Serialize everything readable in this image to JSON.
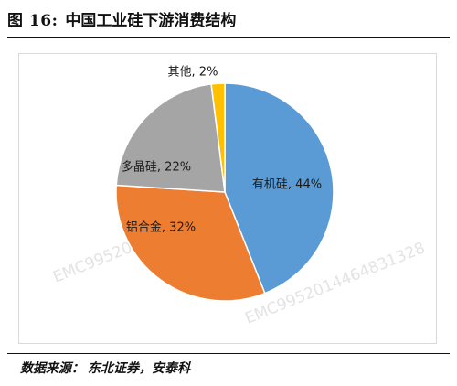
{
  "figure": {
    "label": "图 16:",
    "title": "中国工业硅下游消费结构"
  },
  "source": {
    "label": "数据来源：",
    "text": "东北证券，安泰科"
  },
  "watermark": {
    "text": "EMC9952014464831328"
  },
  "chart_data": {
    "type": "pie",
    "title": "",
    "slices": [
      {
        "label": "有机硅",
        "value": 44,
        "display": "有机硅, 44%",
        "color": "#5b9bd5"
      },
      {
        "label": "铝合金",
        "value": 32,
        "display": "铝合金, 32%",
        "color": "#ed7d31"
      },
      {
        "label": "多晶硅",
        "value": 22,
        "display": "多晶硅, 22%",
        "color": "#a5a5a5"
      },
      {
        "label": "其他",
        "value": 2,
        "display": "其他, 2%",
        "color": "#ffc000"
      }
    ],
    "start_angle": "12 o'clock",
    "direction": "clockwise",
    "legend": "none",
    "data_labels": "category, percent"
  }
}
